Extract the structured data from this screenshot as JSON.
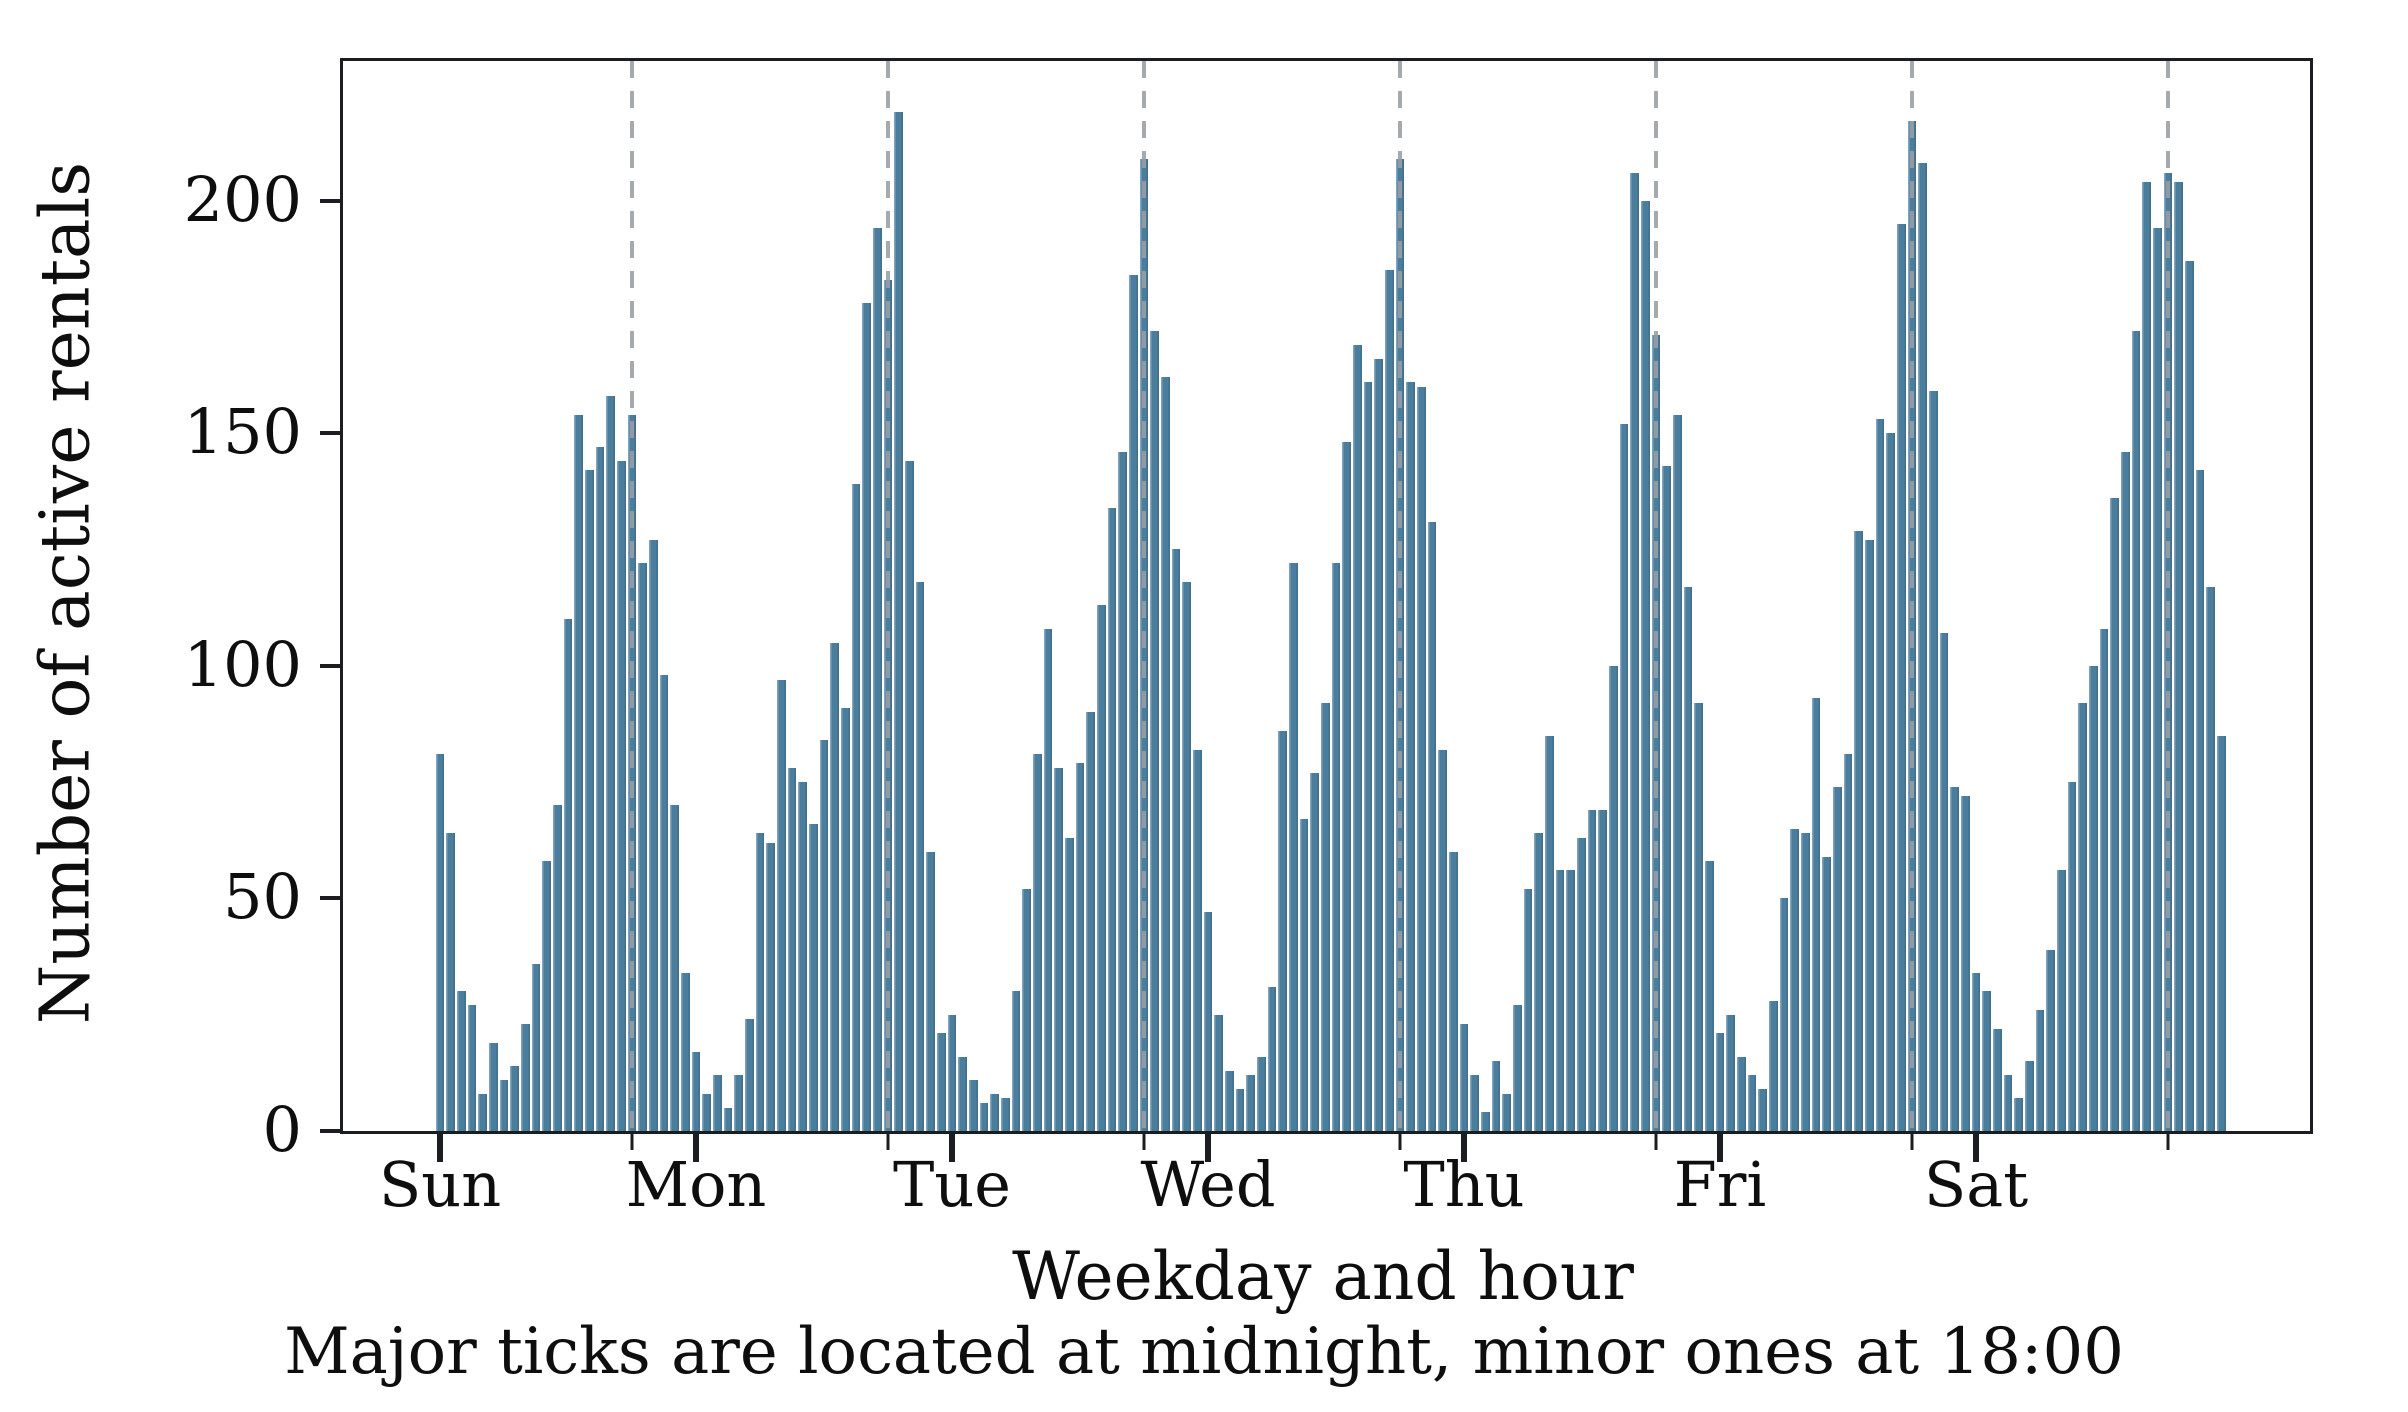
{
  "figure": {
    "ylabel": "Number of active rentals",
    "xlabel": "Weekday and hour",
    "subtitle": "Major ticks are located at midnight, minor ones at 18:00",
    "colors": {
      "bar": "#4b7d9c",
      "dashed_line": "#999ea3",
      "axis": "#1b1d20",
      "text": "#0e0e0e",
      "background": "#ffffff"
    }
  },
  "chart_data": {
    "type": "bar",
    "title": "",
    "xlabel": "Weekday and hour",
    "ylabel": "Number of active rentals",
    "annotation": "Major ticks are located at midnight, minor ones at 18:00",
    "x_tick_labels": [
      "Sun",
      "Mon",
      "Tue",
      "Wed",
      "Thu",
      "Fri",
      "Sat"
    ],
    "y_ticks": [
      0,
      50,
      100,
      150,
      200
    ],
    "ylim": [
      0,
      230
    ],
    "grid": "off",
    "legend": "none",
    "major_tick_hour": 0,
    "minor_tick_hour": 18,
    "hours_per_day": 24,
    "days": [
      {
        "label": "Sun",
        "values": [
          81,
          64,
          30,
          27,
          8,
          19,
          11,
          14,
          23,
          36,
          58,
          70,
          110,
          154,
          142,
          147,
          158,
          144,
          154,
          122,
          127,
          98,
          70,
          34
        ]
      },
      {
        "label": "Mon",
        "values": [
          17,
          8,
          12,
          5,
          12,
          24,
          64,
          62,
          97,
          78,
          75,
          66,
          84,
          105,
          91,
          139,
          178,
          194,
          183,
          219,
          144,
          118,
          60,
          21
        ]
      },
      {
        "label": "Tue",
        "values": [
          25,
          16,
          11,
          6,
          8,
          7,
          30,
          52,
          81,
          108,
          78,
          63,
          79,
          90,
          113,
          134,
          146,
          184,
          209,
          172,
          162,
          125,
          118,
          82
        ]
      },
      {
        "label": "Wed",
        "values": [
          47,
          25,
          13,
          9,
          12,
          16,
          31,
          86,
          122,
          67,
          77,
          92,
          122,
          148,
          169,
          161,
          166,
          185,
          209,
          161,
          160,
          131,
          82,
          60
        ]
      },
      {
        "label": "Thu",
        "values": [
          23,
          12,
          4,
          15,
          8,
          27,
          52,
          64,
          85,
          56,
          56,
          63,
          69,
          69,
          100,
          152,
          206,
          200,
          171,
          143,
          154,
          117,
          92,
          58
        ]
      },
      {
        "label": "Fri",
        "values": [
          21,
          25,
          16,
          12,
          9,
          28,
          50,
          65,
          64,
          93,
          59,
          74,
          81,
          129,
          127,
          153,
          150,
          195,
          217,
          208,
          159,
          107,
          74,
          72
        ]
      },
      {
        "label": "Sat",
        "values": [
          34,
          30,
          22,
          12,
          7,
          15,
          26,
          39,
          56,
          75,
          92,
          100,
          108,
          136,
          146,
          172,
          204,
          194,
          206,
          204,
          187,
          142,
          117,
          85
        ]
      }
    ]
  }
}
